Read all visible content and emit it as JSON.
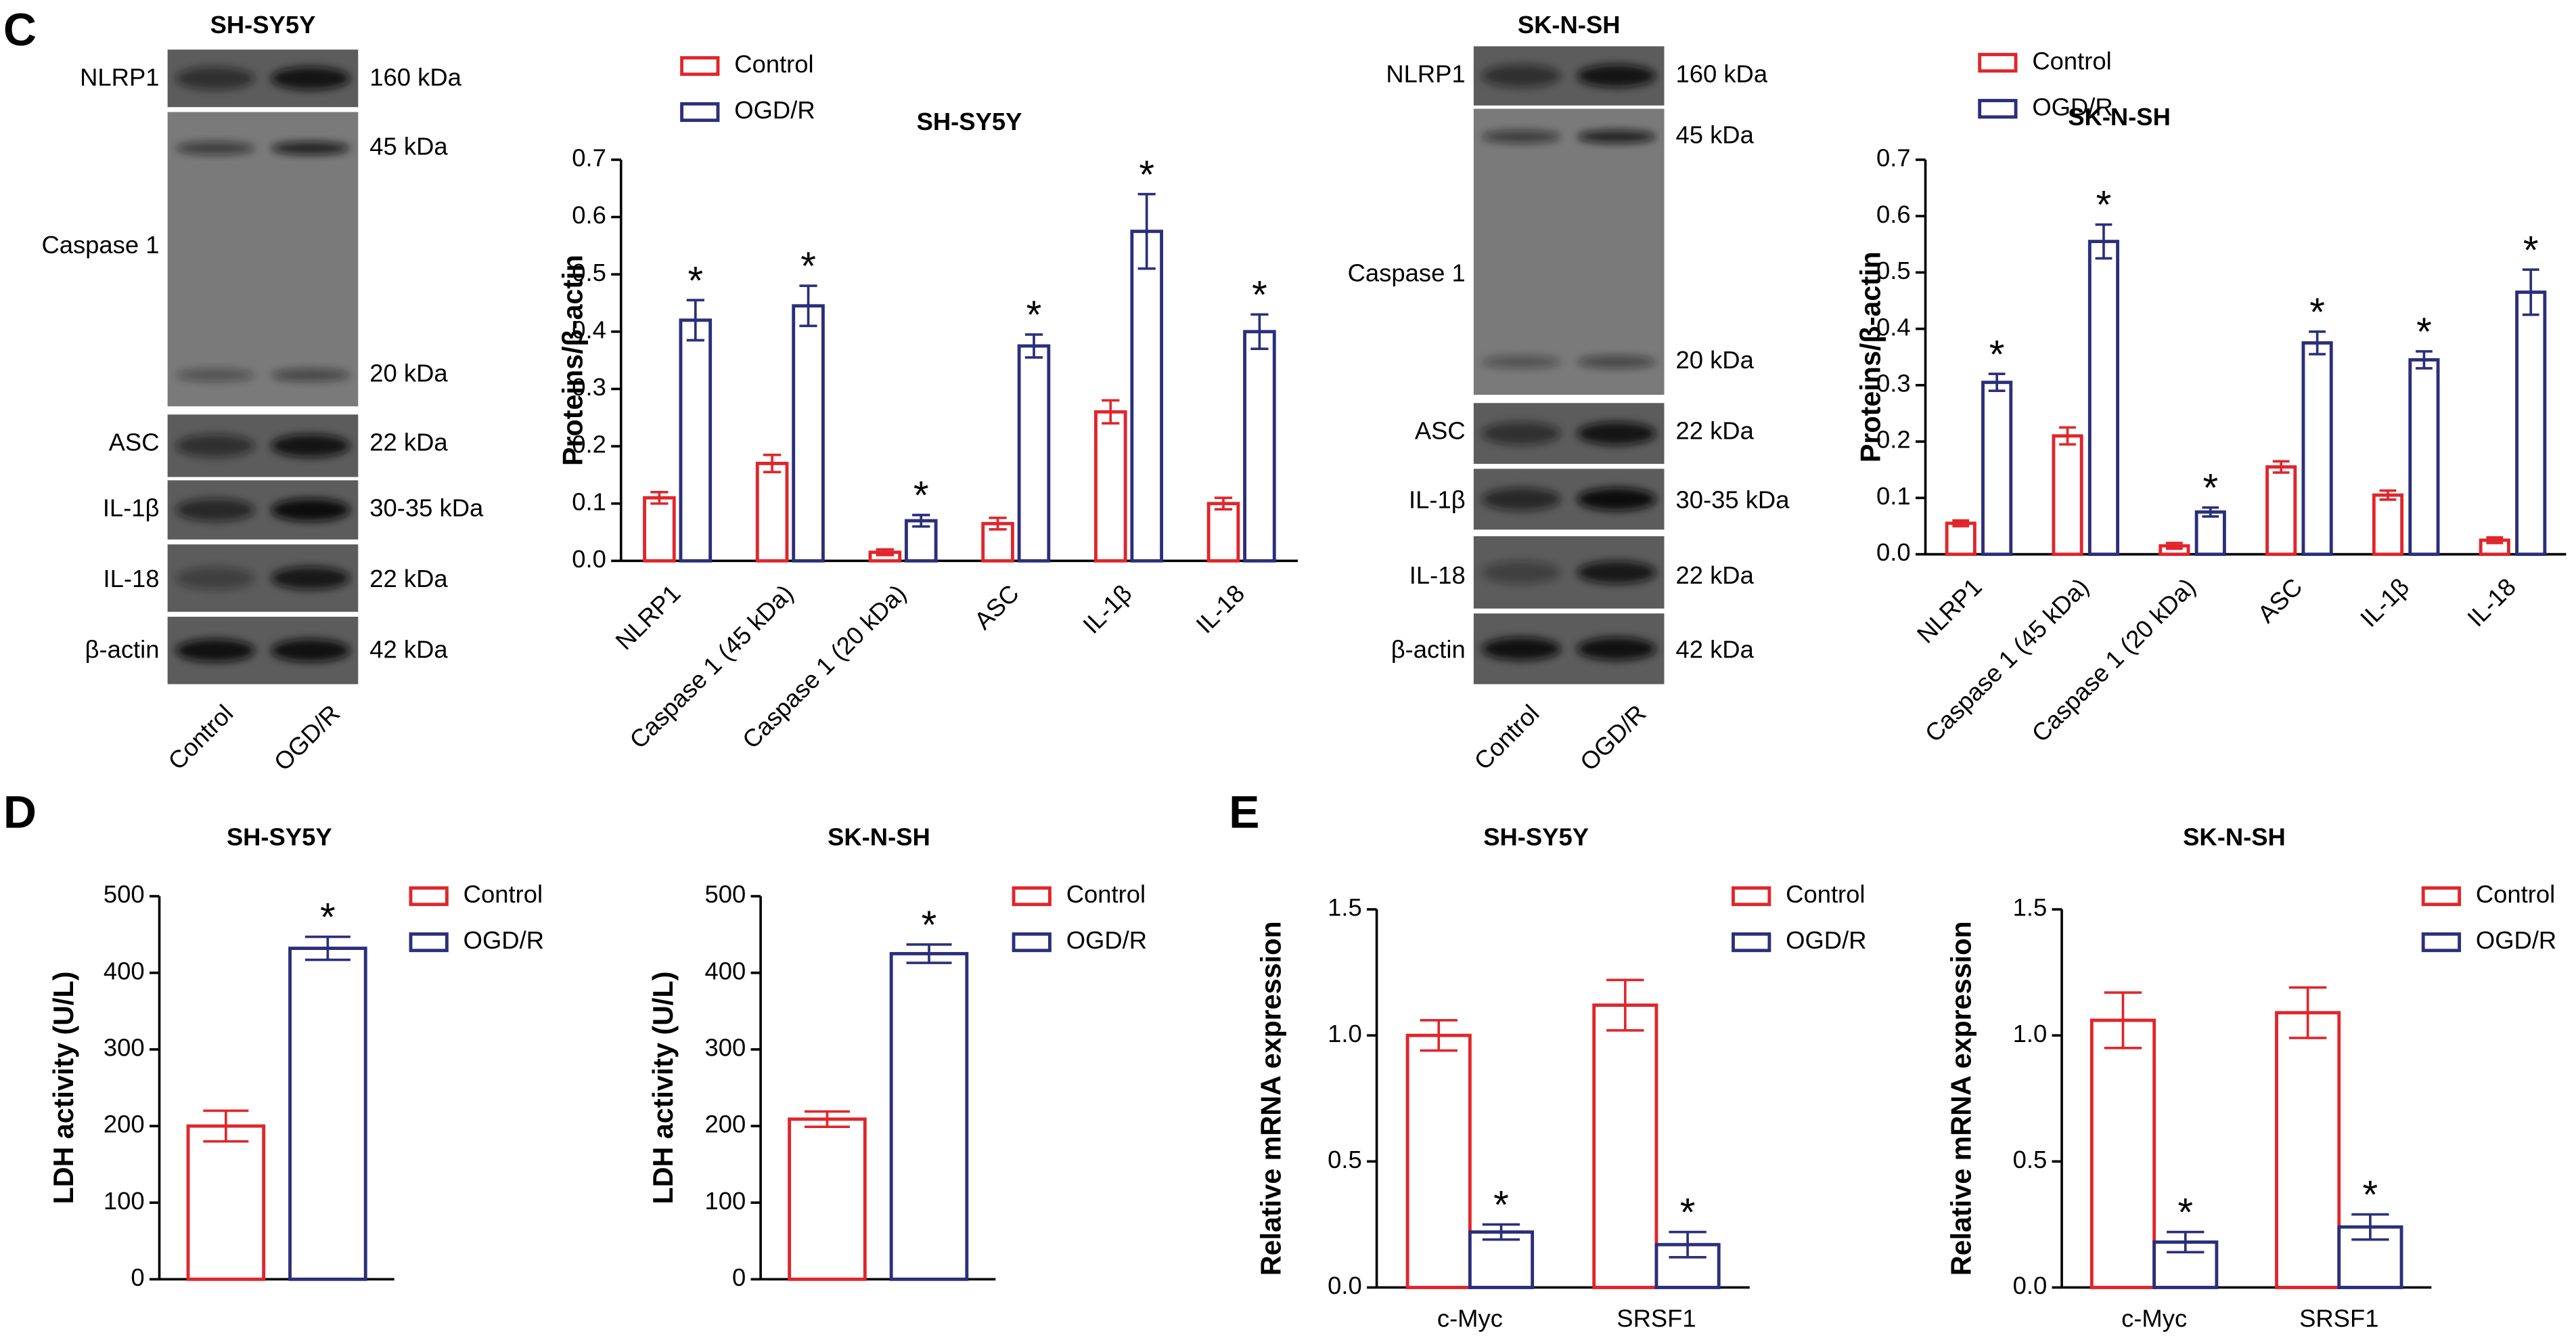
{
  "panels": [
    "C",
    "D",
    "E"
  ],
  "blots": [
    {
      "title": "SH-SY5Y",
      "lanes": [
        "Control",
        "OGD/R"
      ],
      "rows": [
        {
          "label": "NLRP1",
          "sizes": [
            "160 kDa"
          ]
        },
        {
          "label": "Caspase 1",
          "sizes": [
            "45 kDa",
            "20 kDa"
          ]
        },
        {
          "label": "ASC",
          "sizes": [
            "22 kDa"
          ]
        },
        {
          "label": "IL-1β",
          "sizes": [
            "30-35 kDa"
          ]
        },
        {
          "label": "IL-18",
          "sizes": [
            "22 kDa"
          ]
        },
        {
          "label": "β-actin",
          "sizes": [
            "42 kDa"
          ]
        }
      ]
    },
    {
      "title": "SK-N-SH",
      "lanes": [
        "Control",
        "OGD/R"
      ],
      "rows": [
        {
          "label": "NLRP1",
          "sizes": [
            "160 kDa"
          ]
        },
        {
          "label": "Caspase 1",
          "sizes": [
            "45 kDa",
            "20 kDa"
          ]
        },
        {
          "label": "ASC",
          "sizes": [
            "22 kDa"
          ]
        },
        {
          "label": "IL-1β",
          "sizes": [
            "30-35 kDa"
          ]
        },
        {
          "label": "IL-18",
          "sizes": [
            "22 kDa"
          ]
        },
        {
          "label": "β-actin",
          "sizes": [
            "42 kDa"
          ]
        }
      ]
    }
  ],
  "chart_data": [
    {
      "type": "bar",
      "title": "SH-SY5Y",
      "y_label": "Proteins/β-actin",
      "categories": [
        "NLRP1",
        "Caspase 1 (45 kDa)",
        "Caspase 1 (20 kDa)",
        "ASC",
        "IL-1β",
        "IL-18"
      ],
      "series": [
        {
          "name": "Control",
          "color": "#e0262b",
          "values": [
            0.11,
            0.17,
            0.015,
            0.065,
            0.26,
            0.1
          ],
          "errors": [
            0.01,
            0.015,
            0.005,
            0.01,
            0.02,
            0.01
          ]
        },
        {
          "name": "OGD/R",
          "color": "#2b2f7a",
          "values": [
            0.42,
            0.445,
            0.07,
            0.375,
            0.575,
            0.4
          ],
          "errors": [
            0.035,
            0.035,
            0.01,
            0.02,
            0.065,
            0.03
          ],
          "significance": [
            "*",
            "*",
            "*",
            "*",
            "*",
            "*"
          ]
        }
      ],
      "ylim": [
        0,
        0.7
      ],
      "yticks": [
        {
          "value": 0,
          "label": "0.0"
        },
        0.1,
        0.2,
        0.3,
        0.4,
        0.5,
        0.6,
        0.7
      ]
    },
    {
      "type": "bar",
      "title": "SK-N-SH",
      "y_label": "Proteins/β-actin",
      "categories": [
        "NLRP1",
        "Caspase 1 (45 kDa)",
        "Caspase 1 (20 kDa)",
        "ASC",
        "IL-1β",
        "IL-18"
      ],
      "series": [
        {
          "name": "Control",
          "color": "#e0262b",
          "values": [
            0.055,
            0.21,
            0.015,
            0.155,
            0.105,
            0.025
          ],
          "errors": [
            0.005,
            0.015,
            0.005,
            0.01,
            0.008,
            0.005
          ]
        },
        {
          "name": "OGD/R",
          "color": "#2b2f7a",
          "values": [
            0.305,
            0.555,
            0.075,
            0.375,
            0.345,
            0.465
          ],
          "errors": [
            0.015,
            0.03,
            0.008,
            0.02,
            0.015,
            0.04
          ],
          "significance": [
            "*",
            "*",
            "*",
            "*",
            "*",
            "*"
          ]
        }
      ],
      "ylim": [
        0,
        0.7
      ],
      "yticks": [
        {
          "value": 0,
          "label": "0.0"
        },
        0.1,
        0.2,
        0.3,
        0.4,
        0.5,
        0.6,
        0.7
      ]
    },
    {
      "type": "bar",
      "title": "SH-SY5Y",
      "y_label": "LDH activity (U/L)",
      "categories": [
        null
      ],
      "series": [
        {
          "name": "Control",
          "color": "#e0262b",
          "values": [
            200
          ],
          "errors": [
            20
          ]
        },
        {
          "name": "OGD/R",
          "color": "#2b2f7a",
          "values": [
            432
          ],
          "errors": [
            15
          ],
          "significance": [
            "*"
          ]
        }
      ],
      "ylim": [
        0,
        500
      ],
      "yticks": [
        0,
        100,
        200,
        300,
        400,
        500
      ]
    },
    {
      "type": "bar",
      "title": "SK-N-SH",
      "y_label": "LDH activity (U/L)",
      "categories": [
        null
      ],
      "series": [
        {
          "name": "Control",
          "color": "#e0262b",
          "values": [
            209
          ],
          "errors": [
            10
          ]
        },
        {
          "name": "OGD/R",
          "color": "#2b2f7a",
          "values": [
            425
          ],
          "errors": [
            12
          ],
          "significance": [
            "*"
          ]
        }
      ],
      "ylim": [
        0,
        500
      ],
      "yticks": [
        0,
        100,
        200,
        300,
        400,
        500
      ]
    },
    {
      "type": "bar",
      "title": "SH-SY5Y",
      "y_label": "Relative mRNA expression",
      "categories": [
        "c-Myc",
        "SRSF1"
      ],
      "series": [
        {
          "name": "Control",
          "color": "#e0262b",
          "values": [
            1.0,
            1.12
          ],
          "errors": [
            0.06,
            0.1
          ]
        },
        {
          "name": "OGD/R",
          "color": "#2b2f7a",
          "values": [
            0.22,
            0.17
          ],
          "errors": [
            0.03,
            0.05
          ],
          "significance": [
            "*",
            "*"
          ]
        }
      ],
      "ylim": [
        0,
        1.5
      ],
      "yticks": [
        {
          "value": 0,
          "label": "0.0"
        },
        0.5,
        {
          "value": 1,
          "label": "1.0"
        },
        1.5
      ]
    },
    {
      "type": "bar",
      "title": "SK-N-SH",
      "y_label": "Relative mRNA expression",
      "categories": [
        "c-Myc",
        "SRSF1"
      ],
      "series": [
        {
          "name": "Control",
          "color": "#e0262b",
          "values": [
            1.06,
            1.09
          ],
          "errors": [
            0.11,
            0.1
          ]
        },
        {
          "name": "OGD/R",
          "color": "#2b2f7a",
          "values": [
            0.18,
            0.24
          ],
          "errors": [
            0.04,
            0.05
          ],
          "significance": [
            "*",
            "*"
          ]
        }
      ],
      "ylim": [
        0,
        1.5
      ],
      "yticks": [
        {
          "value": 0,
          "label": "0.0"
        },
        0.5,
        {
          "value": 1,
          "label": "1.0"
        },
        1.5
      ]
    }
  ]
}
